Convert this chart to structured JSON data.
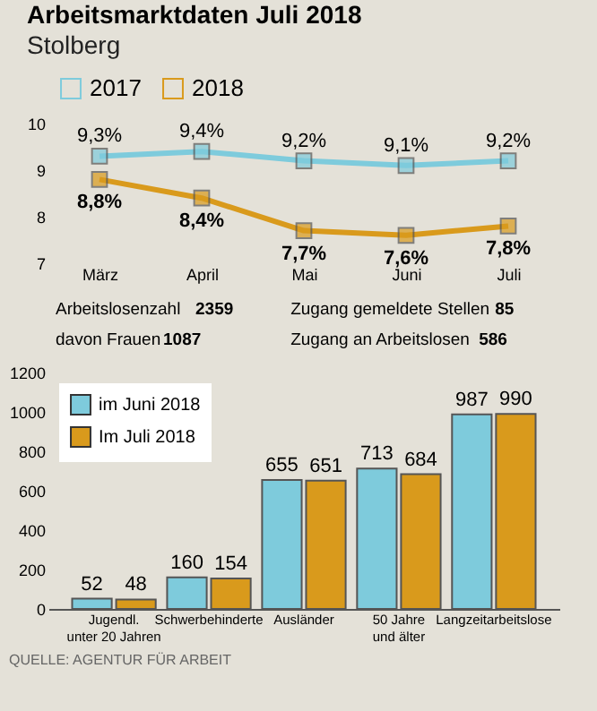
{
  "chart_data": [
    {
      "type": "line",
      "title": "Arbeitsmarktdaten Juli 2018",
      "subtitle": "Stolberg",
      "categories": [
        "März",
        "April",
        "Mai",
        "Juni",
        "Juli"
      ],
      "ylim": [
        7,
        10
      ],
      "yticks": [
        7,
        8,
        9,
        10
      ],
      "marker": "square",
      "line_style": "solid",
      "legend": "top",
      "series": [
        {
          "name": "2017",
          "color": "#7ecbdc",
          "values": [
            9.3,
            9.4,
            9.2,
            9.1,
            9.2
          ],
          "value_labels": [
            "9,3%",
            "9,4%",
            "9,2%",
            "9,1%",
            "9,2%"
          ]
        },
        {
          "name": "2018",
          "color": "#d99a1c",
          "values": [
            8.8,
            8.4,
            7.7,
            7.6,
            7.8
          ],
          "value_labels": [
            "8,8%",
            "8,4%",
            "7,7%",
            "7,6%",
            "7,8%"
          ]
        }
      ]
    },
    {
      "type": "other",
      "categories": [
        "Arbeitslosenzahl",
        "davon Frauen",
        "Zugang gemeldete Stellen",
        "Zugang an Arbeitslosen"
      ],
      "values": [
        2359,
        1087,
        85,
        586
      ],
      "data_labels": true
    },
    {
      "type": "bar",
      "categories": [
        "Jugendl.\nunter 20 Jahren",
        "Schwerbehinderte",
        "Ausländer",
        "50 Jahre\nund älter",
        "Langzeitarbeitslose"
      ],
      "ylim": [
        0,
        1200
      ],
      "yticks": [
        0,
        200,
        400,
        600,
        800,
        1000,
        1200
      ],
      "data_labels": true,
      "legend": "top left",
      "annotations": [
        "QUELLE: AGENTUR FÜR ARBEIT"
      ],
      "series": [
        {
          "name": "im Juni 2018",
          "color": "#7ecbdc",
          "values": [
            52,
            160,
            655,
            713,
            987
          ]
        },
        {
          "name": "Im Juli 2018",
          "color": "#d99a1c",
          "values": [
            48,
            154,
            651,
            684,
            990
          ]
        }
      ]
    }
  ]
}
